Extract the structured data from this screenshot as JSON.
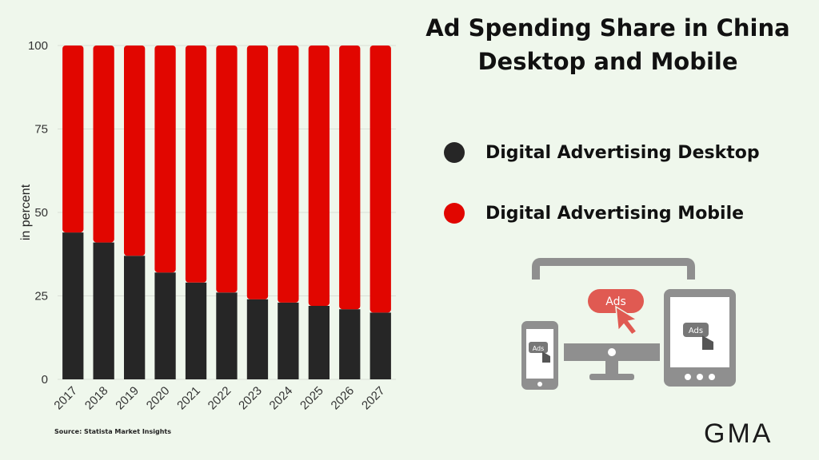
{
  "colors": {
    "desktop": "#262626",
    "mobile": "#e10600",
    "grid": "#d9dfd6"
  },
  "chart_data": {
    "type": "bar",
    "stacked": true,
    "title": "Ad Spending Share in China Desktop and Mobile",
    "title_lines": [
      "Ad Spending Share in China",
      "Desktop and Mobile"
    ],
    "ylabel": "in percent",
    "ylim": [
      0,
      100
    ],
    "yticks": [
      0,
      25,
      50,
      75,
      100
    ],
    "grid": true,
    "legend_position": "right",
    "categories": [
      "2017",
      "2018",
      "2019",
      "2020",
      "2021",
      "2022",
      "2023",
      "2024",
      "2025",
      "2026",
      "2027"
    ],
    "series": [
      {
        "name": "Digital Advertising Desktop",
        "values": [
          44,
          41,
          37,
          32,
          29,
          26,
          24,
          23,
          22,
          21,
          20
        ]
      },
      {
        "name": "Digital Advertising Mobile",
        "values": [
          56,
          59,
          63,
          68,
          71,
          74,
          76,
          77,
          78,
          79,
          80
        ]
      }
    ],
    "source": "Source: Statista Market Insights"
  },
  "illustration": {
    "ads_label": "Ads",
    "icons": [
      "monitor-icon",
      "smartphone-icon",
      "tablet-icon",
      "cursor-icon"
    ]
  },
  "logo": {
    "text": "GMA"
  }
}
